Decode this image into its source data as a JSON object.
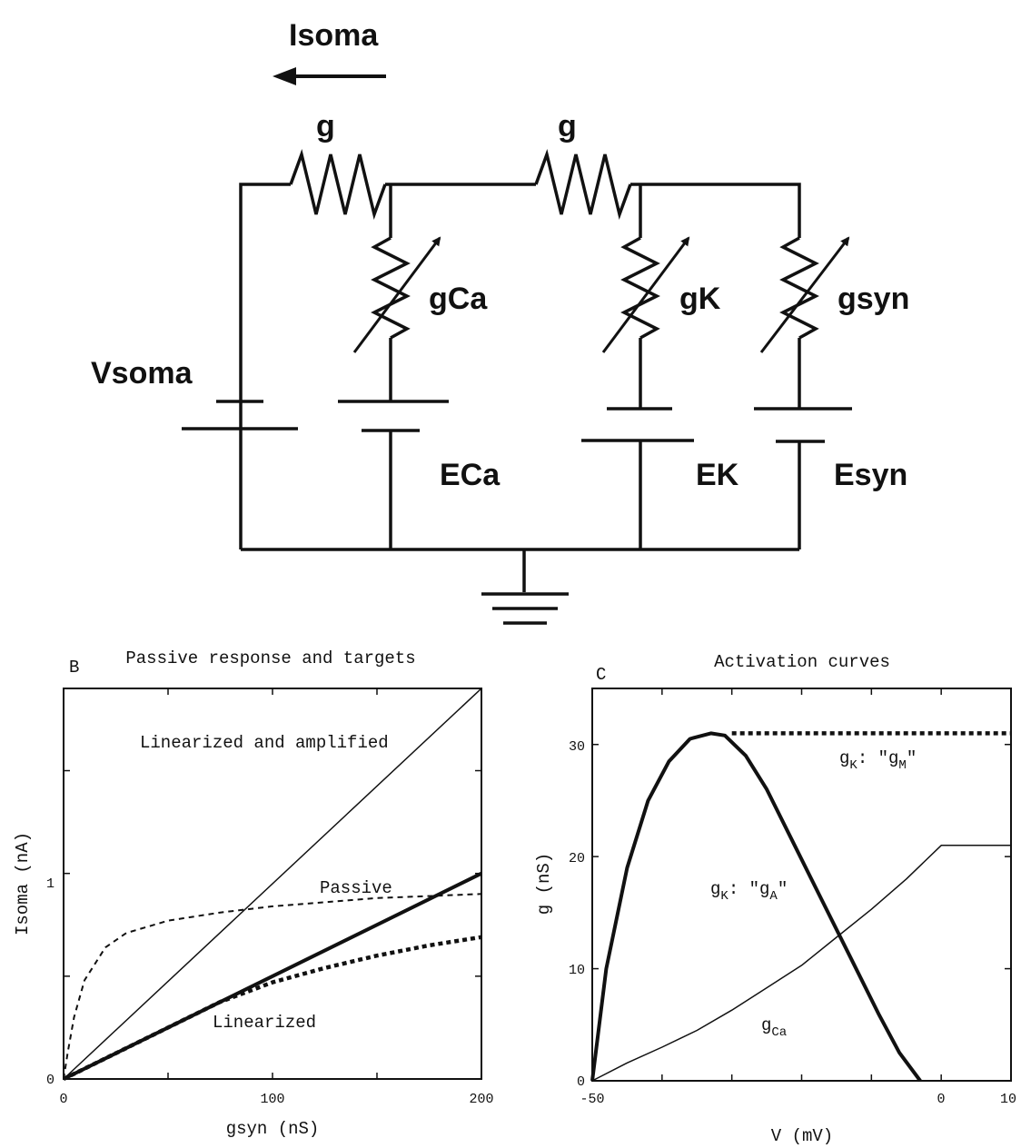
{
  "circuit": {
    "current_label": "Isoma",
    "resistor1_label": "g",
    "resistor2_label": "g",
    "gca_label": "gCa",
    "gk_label": "gK",
    "gsyn_label": "gsyn",
    "vsoma_label": "Vsoma",
    "eca_label": "ECa",
    "ek_label": "EK",
    "esyn_label": "Esyn"
  },
  "panel_b": {
    "letter": "B",
    "title": "Passive response and targets",
    "xlabel": "gsyn (nS)",
    "ylabel": "Isoma (nA)",
    "xticks": [
      "0",
      "100",
      "200"
    ],
    "yticks": [
      "0",
      "1"
    ],
    "annotations": {
      "amplified": "Linearized and amplified",
      "passive": "Passive",
      "linearized": "Linearized"
    }
  },
  "panel_c": {
    "letter": "C",
    "title": "Activation curves",
    "xlabel": "V (mV)",
    "ylabel": "g (nS)",
    "xticks": [
      "-50",
      "0",
      "10"
    ],
    "yticks": [
      "0",
      "10",
      "20",
      "30"
    ],
    "annotations": {
      "gk_m_main": "g",
      "gk_m_sub1": "K",
      "gk_m_mid": ": \"g",
      "gk_m_sub2": "M",
      "gk_m_end": "\"",
      "gk_a_main": "g",
      "gk_a_sub1": "K",
      "gk_a_mid": ": \"g",
      "gk_a_sub2": "A",
      "gk_a_end": "\"",
      "gca_main": "g",
      "gca_sub": "Ca"
    }
  },
  "chart_data": [
    {
      "type": "line",
      "title": "Passive response and targets",
      "xlabel": "gsyn (nS)",
      "ylabel": "Isoma (nA)",
      "xlim": [
        0,
        200
      ],
      "ylim": [
        0,
        1.9
      ],
      "series": [
        {
          "name": "Linearized and amplified",
          "style": "thin-solid",
          "x": [
            0,
            200
          ],
          "y": [
            0,
            1.9
          ]
        },
        {
          "name": "Linearized",
          "style": "thick-solid",
          "x": [
            0,
            200
          ],
          "y": [
            0,
            1.0
          ]
        },
        {
          "name": "Passive",
          "style": "thin-dashed",
          "x": [
            0,
            2,
            5,
            10,
            20,
            30,
            50,
            75,
            100,
            125,
            150,
            175,
            200
          ],
          "y": [
            0,
            0.13,
            0.3,
            0.48,
            0.64,
            0.71,
            0.77,
            0.81,
            0.84,
            0.86,
            0.88,
            0.89,
            0.9
          ]
        },
        {
          "name": "",
          "style": "thick-dashed",
          "x": [
            0,
            25,
            50,
            75,
            100,
            125,
            150,
            175,
            200
          ],
          "y": [
            0,
            0.125,
            0.25,
            0.375,
            0.47,
            0.54,
            0.6,
            0.65,
            0.69
          ]
        }
      ]
    },
    {
      "type": "line",
      "title": "Activation curves",
      "xlabel": "V (mV)",
      "ylabel": "g (nS)",
      "xlim": [
        -50,
        10
      ],
      "ylim": [
        0,
        35
      ],
      "series": [
        {
          "name": "gK: \"gA\"",
          "style": "thick-solid",
          "x": [
            -50,
            -48,
            -45,
            -42,
            -39,
            -36,
            -33,
            -31,
            -28,
            -25,
            -21,
            -17,
            -13,
            -9,
            -6,
            -3
          ],
          "y": [
            0,
            10,
            19,
            25,
            28.5,
            30.5,
            31,
            30.8,
            29,
            26,
            21,
            16,
            11,
            6,
            2.5,
            0
          ]
        },
        {
          "name": "gK: \"gM\"",
          "style": "thick-dashed",
          "x": [
            -30,
            10
          ],
          "y": [
            31,
            31
          ]
        },
        {
          "name": "gCa",
          "style": "thin-solid",
          "x": [
            -50,
            -45,
            -40,
            -35,
            -30,
            -25,
            -20,
            -15,
            -10,
            -5,
            0,
            10
          ],
          "y": [
            0,
            1.6,
            3.0,
            4.5,
            6.3,
            8.3,
            10.3,
            12.8,
            15.3,
            18,
            21,
            21
          ]
        }
      ]
    }
  ]
}
